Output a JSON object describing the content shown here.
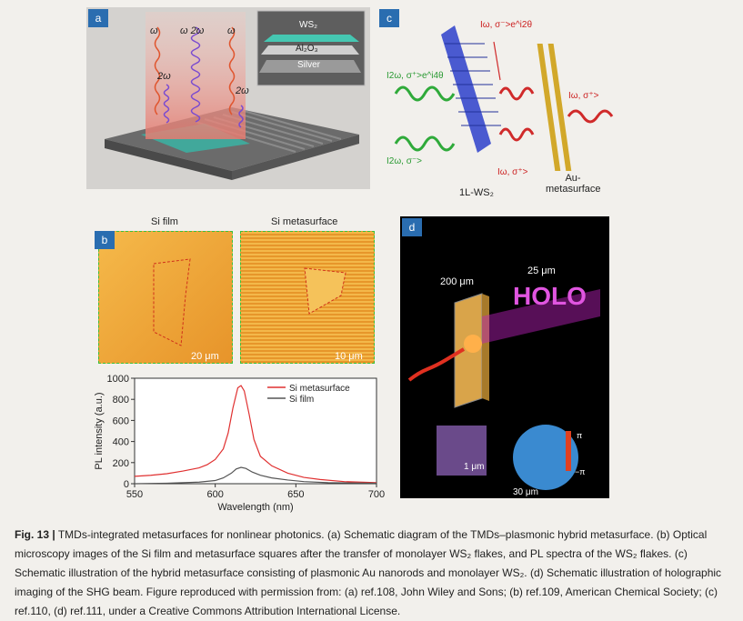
{
  "panel_a": {
    "tag": "a",
    "omega_left": "ω",
    "omega_mid": "ω 2ω",
    "omega_right": "ω",
    "two_omega_left": "2ω",
    "two_omega_right": "2ω",
    "inset_ws2": "WS₂",
    "inset_al2o3": "Al₂O₃",
    "inset_silver": "Silver"
  },
  "panel_b": {
    "tag": "b",
    "title_left": "Si film",
    "title_right": "Si metasurface",
    "scale_left": "20 μm",
    "scale_right": "10 μm"
  },
  "panel_c": {
    "tag": "c",
    "label_top_red": "Iω, σ⁻>e^i2θ",
    "label_green_top": "I2ω, σ⁺>e^i4θ",
    "label_green_bottom": "I2ω, σ⁻>",
    "label_red_right": "Iω, σ⁺>",
    "label_red_bottom": "Iω, σ⁺>",
    "label_ws2": "1L-WS₂",
    "label_au": "Au-metasurface"
  },
  "panel_d": {
    "tag": "d",
    "dim_200": "200 μm",
    "dim_25": "25 μm",
    "holo": "HOLO",
    "scale_1": "1 μm",
    "scale_30": "30 μm",
    "phase_top": "π",
    "phase_bottom": "−π"
  },
  "chart_data": {
    "type": "line",
    "xlabel": "Wavelength (nm)",
    "ylabel": "PL intensity (a.u.)",
    "xlim": [
      550,
      700
    ],
    "ylim": [
      0,
      1000
    ],
    "xticks": [
      550,
      600,
      650,
      700
    ],
    "yticks": [
      0,
      200,
      400,
      600,
      800,
      1000
    ],
    "legend_position": "top-right",
    "series": [
      {
        "name": "Si metasurface",
        "color": "#e03030",
        "x": [
          550,
          560,
          570,
          580,
          590,
          595,
          600,
          605,
          608,
          611,
          614,
          616,
          618,
          621,
          624,
          628,
          635,
          645,
          655,
          665,
          680,
          700
        ],
        "y": [
          70,
          80,
          95,
          120,
          150,
          180,
          230,
          330,
          480,
          720,
          910,
          930,
          880,
          660,
          420,
          260,
          170,
          100,
          60,
          40,
          20,
          10
        ]
      },
      {
        "name": "Si film",
        "color": "#555555",
        "x": [
          550,
          570,
          590,
          600,
          605,
          610,
          613,
          616,
          619,
          623,
          628,
          635,
          645,
          655,
          670,
          700
        ],
        "y": [
          0,
          5,
          15,
          30,
          55,
          100,
          140,
          155,
          145,
          110,
          80,
          55,
          35,
          20,
          10,
          5
        ]
      }
    ]
  },
  "caption": {
    "fig_label": "Fig. 13 |",
    "text": " TMDs-integrated metasurfaces for nonlinear photonics. (a) Schematic diagram of the TMDs–plasmonic hybrid metasurface. (b) Optical microscopy images of the Si film and metasurface squares after the transfer of monolayer WS₂ flakes, and PL spectra of the WS₂ flakes. (c) Schematic illustration of the hybrid metasurface consisting of plasmonic Au nanorods and monolayer WS₂. (d) Schematic illustration of holographic imaging of the SHG beam. Figure reproduced with permission from: (a) ref.108, John Wiley and Sons; (b) ref.109, American Chemical Society; (c) ref.110, (d) ref.111, under a Creative Commons Attribution International License."
  }
}
